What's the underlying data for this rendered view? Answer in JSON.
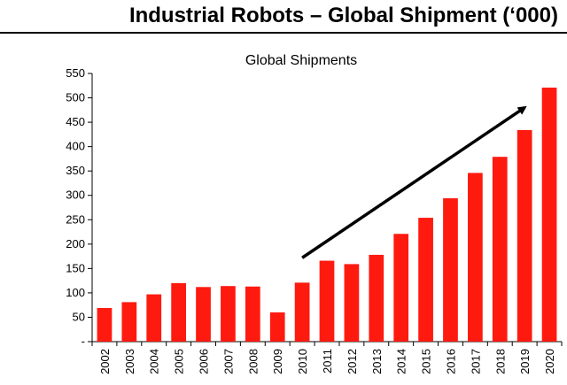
{
  "page": {
    "title": "Industrial Robots – Global Shipment (‘000)"
  },
  "chart_data": {
    "type": "bar",
    "title": "Global Shipments",
    "xlabel": "",
    "ylabel": "",
    "categories": [
      "2002",
      "2003",
      "2004",
      "2005",
      "2006",
      "2007",
      "2008",
      "2009",
      "2010",
      "2011",
      "2012",
      "2013",
      "2014",
      "2015",
      "2016",
      "2017",
      "2018",
      "2019",
      "2020"
    ],
    "values": [
      69,
      81,
      97,
      120,
      112,
      114,
      113,
      60,
      121,
      166,
      159,
      178,
      221,
      254,
      294,
      346,
      379,
      434,
      521
    ],
    "ylim": [
      0,
      550
    ],
    "yticks": [
      0,
      50,
      100,
      150,
      200,
      250,
      300,
      350,
      400,
      450,
      500,
      550
    ],
    "ytick_labels": [
      "-",
      "50",
      "100",
      "150",
      "200",
      "250",
      "300",
      "350",
      "400",
      "450",
      "500",
      "550"
    ],
    "bar_color": "#ff1a10",
    "grid": false,
    "annotation": {
      "type": "arrow",
      "from_category": "2010",
      "from_value": 172,
      "to_category": "2019",
      "to_value": 480
    }
  }
}
